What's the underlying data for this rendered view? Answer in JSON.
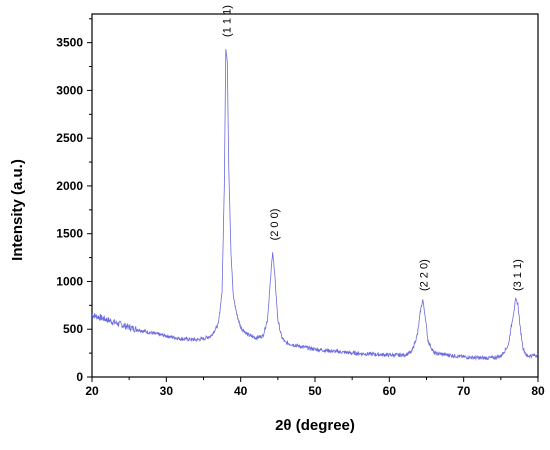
{
  "chart_data": {
    "type": "line",
    "title": "",
    "xlabel": "2θ (degree)",
    "ylabel": "Intensity (a.u.)",
    "xlim": [
      20,
      80
    ],
    "ylim": [
      0,
      3800
    ],
    "xticks": [
      20,
      30,
      40,
      50,
      60,
      70,
      80
    ],
    "yticks": [
      0,
      500,
      1000,
      1500,
      2000,
      2500,
      3000,
      3500
    ],
    "grid": false,
    "legend": "none",
    "line_color": "#6b6bdc",
    "series": [
      {
        "name": "",
        "x": [
          20,
          22,
          25,
          28,
          30,
          32,
          34,
          35,
          36,
          37,
          37.5,
          37.8,
          38.0,
          38.2,
          38.4,
          38.7,
          39.0,
          39.5,
          40,
          41,
          42,
          43,
          43.6,
          44.0,
          44.3,
          44.6,
          45.0,
          45.5,
          46,
          48,
          50,
          55,
          60,
          62,
          63,
          63.8,
          64.2,
          64.5,
          64.8,
          65.2,
          66,
          68,
          70,
          72,
          74,
          75,
          76,
          76.6,
          77.0,
          77.3,
          77.6,
          78.0,
          78.5,
          80
        ],
        "y": [
          650,
          600,
          520,
          460,
          430,
          400,
          390,
          400,
          430,
          550,
          900,
          2000,
          3450,
          3300,
          2200,
          1300,
          850,
          650,
          520,
          440,
          410,
          430,
          600,
          1000,
          1320,
          1050,
          600,
          420,
          360,
          320,
          290,
          250,
          230,
          230,
          260,
          450,
          700,
          810,
          650,
          380,
          250,
          230,
          210,
          200,
          200,
          220,
          330,
          620,
          810,
          760,
          520,
          300,
          220,
          230
        ]
      }
    ],
    "annotations": [
      {
        "text": "(1 1 1)",
        "x": 38.1,
        "y": 3560
      },
      {
        "text": "(2 0 0)",
        "x": 44.5,
        "y": 1430
      },
      {
        "text": "(2 2 0)",
        "x": 64.6,
        "y": 900
      },
      {
        "text": "(3 1 1)",
        "x": 77.2,
        "y": 900
      }
    ]
  }
}
